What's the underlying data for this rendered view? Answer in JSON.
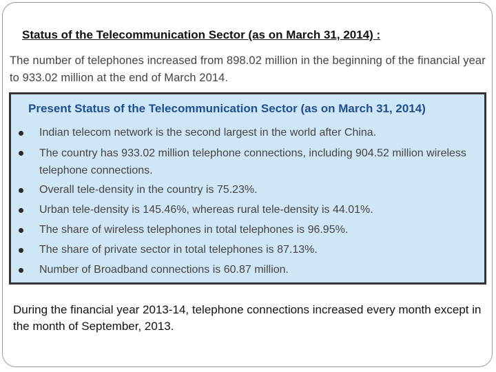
{
  "heading": "Status of the Telecommunication Sector (as on March 31, 2014) :",
  "intro": "The number of telephones increased from 898.02 million in the beginning of the financial year to 933.02 million at the end of March 2014.",
  "status_box": {
    "title": "Present Status of the Telecommunication Sector (as on March 31, 2014)",
    "bullets": [
      "Indian telecom network is the second largest in the world after China.",
      "The country has 933.02 million telephone connections, including 904.52 million wireless telephone connections.",
      "Overall tele-density in the country is 75.23%.",
      "Urban tele-density is 145.46%, whereas rural tele-density is 44.01%.",
      "The share of wireless telephones in total telephones is 96.95%.",
      "The share of private sector in total telephones is 87.13%.",
      "Number of Broadband connections is 60.87 million."
    ]
  },
  "footer": "During the financial year 2013-14, telephone connections increased every month except in the month of September, 2013.",
  "colors": {
    "box_background": "#cfe6f6",
    "box_title": "#1f4e93",
    "box_border": "#333333"
  }
}
